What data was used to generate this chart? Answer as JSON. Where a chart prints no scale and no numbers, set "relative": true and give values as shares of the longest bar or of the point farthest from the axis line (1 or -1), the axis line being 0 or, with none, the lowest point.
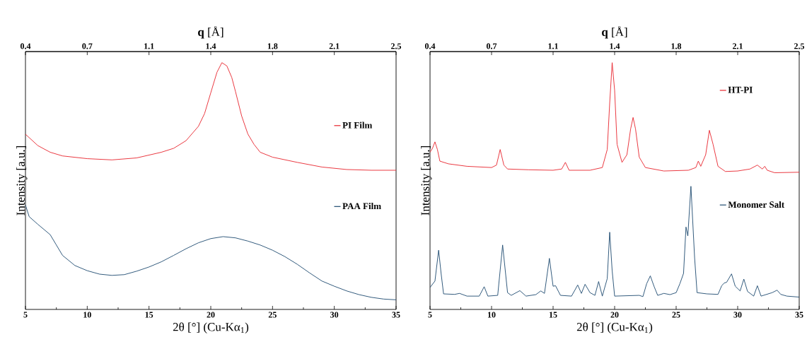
{
  "chart_data": [
    {
      "type": "line",
      "relative": true,
      "ylabel": "Intensity [a.u.]",
      "xlabel": "2θ [°] (Cu-Kα$_{1}$)",
      "x2label": "**q** [Å]",
      "xlim": [
        5,
        35
      ],
      "xticks": [
        5,
        10,
        15,
        20,
        25,
        30,
        35
      ],
      "x2lim": [
        0.4,
        2.5
      ],
      "x2ticks": [
        0.4,
        {
          "value": 0.75,
          "label": "0.7"
        },
        1.1,
        {
          "value": 1.45,
          "label": "1.4"
        },
        1.8,
        {
          "value": 2.15,
          "label": "2.1"
        },
        2.5
      ],
      "legend": "right",
      "series": [
        {
          "name": "PI Film",
          "color": "#e8242c",
          "x": [
            5,
            6,
            7,
            8,
            10,
            12,
            14,
            16,
            17,
            18,
            19,
            19.5,
            20,
            20.5,
            20.9,
            21.3,
            21.7,
            22,
            22.5,
            23,
            23.5,
            24,
            25,
            27,
            29,
            31,
            33,
            35
          ],
          "values": [
            0.71,
            0.664,
            0.637,
            0.622,
            0.611,
            0.606,
            0.614,
            0.637,
            0.653,
            0.684,
            0.742,
            0.794,
            0.878,
            0.961,
            1.0,
            0.987,
            0.94,
            0.883,
            0.784,
            0.711,
            0.669,
            0.637,
            0.617,
            0.596,
            0.577,
            0.567,
            0.564,
            0.564
          ]
        },
        {
          "name": "PAA Film",
          "color": "#1d4a6f",
          "x": [
            5,
            5.3,
            6,
            7,
            7.5,
            8,
            9,
            10,
            11,
            12,
            13,
            14,
            15,
            16,
            17,
            18,
            19,
            20,
            21,
            22,
            23,
            24,
            25,
            26,
            27,
            28,
            29,
            30,
            31,
            32,
            33,
            34,
            35
          ],
          "values": [
            0.423,
            0.376,
            0.345,
            0.303,
            0.261,
            0.219,
            0.178,
            0.157,
            0.143,
            0.138,
            0.141,
            0.155,
            0.172,
            0.193,
            0.219,
            0.246,
            0.27,
            0.287,
            0.295,
            0.29,
            0.277,
            0.261,
            0.24,
            0.214,
            0.183,
            0.148,
            0.115,
            0.094,
            0.075,
            0.06,
            0.049,
            0.042,
            0.039
          ]
        }
      ]
    },
    {
      "type": "line",
      "relative": true,
      "ylabel": "Intensity [a.u.]",
      "xlabel": "2θ [°] (Cu-Kα$_{1}$)",
      "x2label": "**q** [Å]",
      "xlim": [
        5,
        35
      ],
      "xticks": [
        5,
        10,
        15,
        20,
        25,
        30,
        35
      ],
      "x2lim": [
        0.4,
        2.5
      ],
      "x2ticks": [
        0.4,
        {
          "value": 0.75,
          "label": "0.7"
        },
        1.1,
        {
          "value": 1.45,
          "label": "1.4"
        },
        1.8,
        {
          "value": 2.15,
          "label": "2.1"
        },
        2.5
      ],
      "legend": "right",
      "series": [
        {
          "name": "HT-PI",
          "color": "#e8242c",
          "x": [
            5,
            5.2,
            5.4,
            5.6,
            5.8,
            6.5,
            8,
            10,
            10.4,
            10.7,
            11,
            11.3,
            13,
            15,
            15.7,
            16,
            16.3,
            18,
            19,
            19.4,
            19.6,
            19.8,
            20,
            20.2,
            20.6,
            21,
            21.3,
            21.5,
            21.7,
            22,
            22.5,
            24,
            26,
            26.6,
            26.8,
            27,
            27.4,
            27.7,
            28,
            28.4,
            29,
            30,
            31,
            31.6,
            32,
            32.2,
            32.4,
            33,
            35
          ],
          "values": [
            0.637,
            0.653,
            0.679,
            0.648,
            0.601,
            0.59,
            0.58,
            0.575,
            0.585,
            0.648,
            0.585,
            0.569,
            0.566,
            0.564,
            0.569,
            0.596,
            0.564,
            0.564,
            0.575,
            0.648,
            0.836,
            1.0,
            0.888,
            0.669,
            0.596,
            0.627,
            0.731,
            0.778,
            0.731,
            0.617,
            0.575,
            0.561,
            0.564,
            0.575,
            0.601,
            0.58,
            0.627,
            0.726,
            0.669,
            0.58,
            0.559,
            0.561,
            0.569,
            0.585,
            0.569,
            0.58,
            0.564,
            0.554,
            0.556
          ]
        },
        {
          "name": "Monomer Salt",
          "color": "#1d4a6f",
          "x": [
            5,
            5.4,
            5.7,
            5.9,
            6.1,
            7,
            7.4,
            8,
            9,
            9.4,
            9.7,
            10.5,
            10.9,
            11.3,
            11.6,
            12.3,
            12.8,
            13.6,
            14,
            14.3,
            14.7,
            15,
            15.2,
            15.6,
            16.5,
            17,
            17.3,
            17.6,
            18,
            18.4,
            18.7,
            19,
            19.4,
            19.6,
            19.8,
            20,
            22,
            22.3,
            22.6,
            22.9,
            23.2,
            23.5,
            24,
            24.5,
            25,
            25.3,
            25.6,
            25.8,
            25.95,
            26.2,
            26.5,
            26.7,
            27.5,
            28.4,
            28.7,
            28.9,
            29.1,
            29.5,
            29.8,
            30.2,
            30.5,
            30.8,
            31.3,
            31.6,
            31.9,
            32.8,
            33.2,
            33.5,
            34,
            35
          ],
          "values": [
            0.089,
            0.115,
            0.24,
            0.146,
            0.063,
            0.061,
            0.065,
            0.054,
            0.054,
            0.092,
            0.054,
            0.057,
            0.261,
            0.068,
            0.057,
            0.076,
            0.054,
            0.06,
            0.075,
            0.065,
            0.207,
            0.094,
            0.096,
            0.057,
            0.054,
            0.099,
            0.065,
            0.102,
            0.068,
            0.057,
            0.113,
            0.054,
            0.125,
            0.313,
            0.157,
            0.054,
            0.057,
            0.052,
            0.104,
            0.136,
            0.094,
            0.057,
            0.065,
            0.06,
            0.068,
            0.104,
            0.146,
            0.334,
            0.298,
            0.499,
            0.209,
            0.068,
            0.063,
            0.061,
            0.096,
            0.107,
            0.11,
            0.144,
            0.094,
            0.075,
            0.123,
            0.073,
            0.054,
            0.096,
            0.054,
            0.068,
            0.078,
            0.061,
            0.054,
            0.05
          ]
        }
      ]
    }
  ]
}
